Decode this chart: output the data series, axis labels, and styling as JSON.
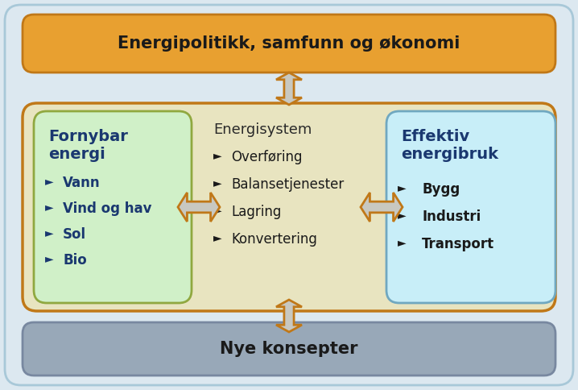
{
  "background_color": "#dce8f0",
  "outer_border_color": "#a8c8d8",
  "title_top": "Energipolitikk, samfunn og økonomi",
  "title_top_bg": "#e8a030",
  "title_top_edge": "#c07818",
  "title_bottom": "Nye konsepter",
  "title_bottom_bg": "#98a8b8",
  "title_bottom_edge": "#7888a0",
  "middle_bg": "#e8e4c0",
  "middle_border": "#c07818",
  "left_box_title_line1": "Fornybar",
  "left_box_title_line2": "energi",
  "left_box_items": [
    "Vann",
    "Vind og hav",
    "Sol",
    "Bio"
  ],
  "left_box_bg": "#d0f0c8",
  "left_box_border": "#90a840",
  "center_box_title": "Energisystem",
  "center_box_items": [
    "Overføring",
    "Balansetjenester",
    "Lagring",
    "Konvertering"
  ],
  "right_box_title_line1": "Effektiv",
  "right_box_title_line2": "energibruk",
  "right_box_items": [
    "Bygg",
    "Industri",
    "Transport"
  ],
  "right_box_bg": "#c8eef8",
  "right_box_border": "#70a8c0",
  "text_dark": "#1a1a1a",
  "text_blue": "#1a3870",
  "text_center_dark": "#2a2a2a",
  "arrow_fill": "#c8c8c0",
  "arrow_border": "#c07818",
  "arrow_inner_fill": "#d8d0c0"
}
